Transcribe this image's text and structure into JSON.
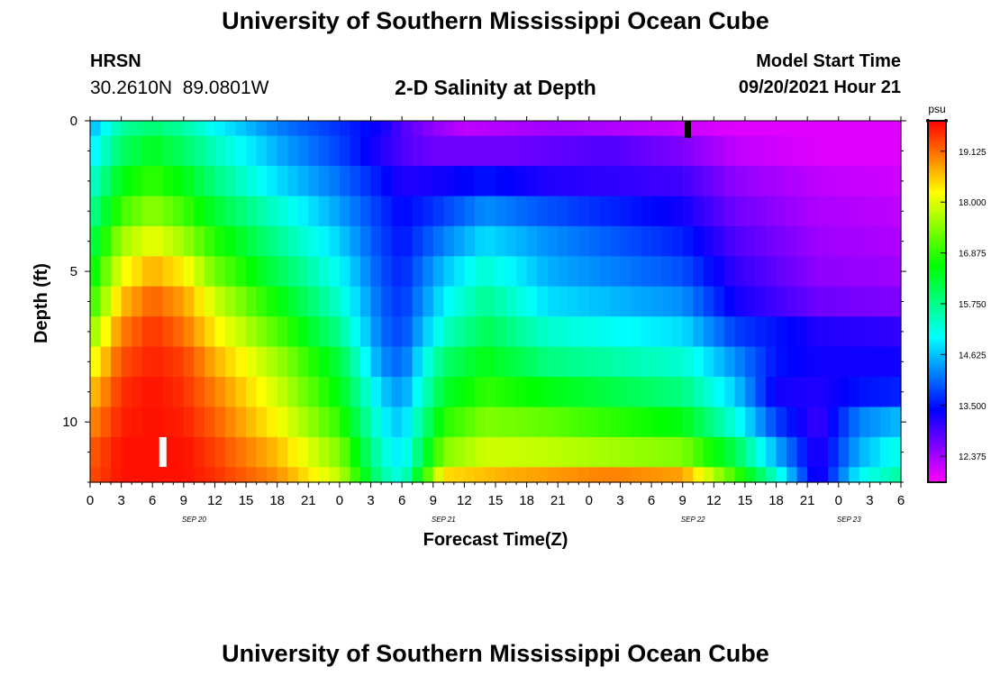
{
  "header": {
    "title": "University of Southern Mississippi Ocean Cube",
    "station": "HRSN",
    "coords": "30.2610N  89.0801W",
    "subtitle": "2-D Salinity at Depth",
    "model_label": "Model Start Time",
    "model_time": "09/20/2021 Hour 21"
  },
  "footer": {
    "title": "University of Southern Mississippi Ocean Cube"
  },
  "chart_data": {
    "type": "heatmap",
    "title": "2-D Salinity at Depth",
    "xlabel": "Forecast Time(Z)",
    "ylabel": "Depth (ft)",
    "colorbar_unit": "psu",
    "colorbar_ticks": [
      "12.375",
      "13.500",
      "14.625",
      "15.750",
      "16.875",
      "18.000",
      "19.125"
    ],
    "colorbar_range": [
      11.8,
      19.8
    ],
    "x_ticks": [
      "0",
      "3",
      "6",
      "9",
      "12",
      "15",
      "18",
      "21",
      "0",
      "3",
      "6",
      "9",
      "12",
      "15",
      "18",
      "21",
      "0",
      "3",
      "6",
      "9",
      "12",
      "15",
      "18",
      "21",
      "0",
      "3",
      "6"
    ],
    "date_labels": [
      {
        "label": "SEP 20",
        "hour": 10
      },
      {
        "label": "SEP 21",
        "hour": 34
      },
      {
        "label": "SEP 22",
        "hour": 58
      },
      {
        "label": "SEP 23",
        "hour": 73
      }
    ],
    "xlim": [
      0,
      78
    ],
    "y_ticks": [
      0,
      5,
      10
    ],
    "ylim": [
      0,
      12
    ],
    "model_start_marker_hour": 57.5,
    "wake_marker_hour": 7,
    "row_depths_ft": [
      0,
      1,
      2,
      3,
      4,
      5,
      6,
      7,
      8,
      9,
      10,
      11,
      12
    ],
    "row_keyframes": [
      [
        [
          0,
          14.5
        ],
        [
          3,
          15.6
        ],
        [
          6,
          15.9
        ],
        [
          9,
          15.6
        ],
        [
          12,
          15.0
        ],
        [
          18,
          14.2
        ],
        [
          24,
          13.7
        ],
        [
          28,
          13.3
        ],
        [
          30,
          12.9
        ],
        [
          33,
          12.5
        ],
        [
          36,
          12.2
        ],
        [
          45,
          12.4
        ],
        [
          55,
          12.2
        ],
        [
          58,
          12.1
        ],
        [
          62,
          12.0
        ],
        [
          78,
          12.0
        ]
      ],
      [
        [
          0,
          14.8
        ],
        [
          3,
          16.0
        ],
        [
          6,
          16.4
        ],
        [
          9,
          16.0
        ],
        [
          12,
          15.4
        ],
        [
          18,
          14.5
        ],
        [
          24,
          13.8
        ],
        [
          28,
          13.2
        ],
        [
          30,
          12.9
        ],
        [
          33,
          12.7
        ],
        [
          40,
          12.7
        ],
        [
          50,
          12.9
        ],
        [
          57,
          12.6
        ],
        [
          62,
          12.2
        ],
        [
          70,
          12.0
        ],
        [
          78,
          12.0
        ]
      ],
      [
        [
          0,
          15.2
        ],
        [
          3,
          16.5
        ],
        [
          6,
          16.9
        ],
        [
          9,
          16.5
        ],
        [
          12,
          15.8
        ],
        [
          18,
          14.8
        ],
        [
          24,
          14.1
        ],
        [
          28,
          13.5
        ],
        [
          30,
          13.2
        ],
        [
          34,
          13.3
        ],
        [
          38,
          13.5
        ],
        [
          44,
          13.2
        ],
        [
          57,
          13.0
        ],
        [
          62,
          12.5
        ],
        [
          70,
          12.2
        ],
        [
          78,
          12.1
        ]
      ],
      [
        [
          0,
          15.6
        ],
        [
          3,
          17.0
        ],
        [
          6,
          17.5
        ],
        [
          9,
          17.0
        ],
        [
          12,
          16.3
        ],
        [
          18,
          15.3
        ],
        [
          24,
          14.4
        ],
        [
          28,
          13.7
        ],
        [
          30,
          13.4
        ],
        [
          34,
          13.8
        ],
        [
          38,
          14.3
        ],
        [
          44,
          13.9
        ],
        [
          57,
          13.3
        ],
        [
          62,
          12.7
        ],
        [
          70,
          12.3
        ],
        [
          78,
          12.2
        ]
      ],
      [
        [
          0,
          16.0
        ],
        [
          3,
          17.6
        ],
        [
          6,
          18.1
        ],
        [
          9,
          17.6
        ],
        [
          12,
          16.8
        ],
        [
          18,
          15.7
        ],
        [
          24,
          14.7
        ],
        [
          28,
          13.8
        ],
        [
          30,
          13.5
        ],
        [
          34,
          14.2
        ],
        [
          38,
          14.8
        ],
        [
          44,
          14.3
        ],
        [
          57,
          13.6
        ],
        [
          62,
          12.9
        ],
        [
          70,
          12.4
        ],
        [
          78,
          12.3
        ]
      ],
      [
        [
          0,
          16.4
        ],
        [
          3,
          18.1
        ],
        [
          6,
          18.7
        ],
        [
          9,
          18.3
        ],
        [
          12,
          17.3
        ],
        [
          18,
          16.1
        ],
        [
          24,
          15.0
        ],
        [
          28,
          13.9
        ],
        [
          30,
          13.6
        ],
        [
          34,
          14.6
        ],
        [
          38,
          15.3
        ],
        [
          44,
          14.5
        ],
        [
          57,
          13.9
        ],
        [
          62,
          13.1
        ],
        [
          70,
          12.5
        ],
        [
          78,
          12.4
        ]
      ],
      [
        [
          0,
          16.8
        ],
        [
          3,
          18.6
        ],
        [
          6,
          19.2
        ],
        [
          9,
          18.8
        ],
        [
          12,
          17.9
        ],
        [
          18,
          16.6
        ],
        [
          24,
          15.3
        ],
        [
          28,
          14.0
        ],
        [
          30,
          13.7
        ],
        [
          34,
          14.9
        ],
        [
          38,
          15.7
        ],
        [
          44,
          14.8
        ],
        [
          57,
          14.3
        ],
        [
          62,
          13.3
        ],
        [
          70,
          12.7
        ],
        [
          78,
          12.6
        ]
      ],
      [
        [
          0,
          17.4
        ],
        [
          3,
          19.0
        ],
        [
          6,
          19.5
        ],
        [
          9,
          19.1
        ],
        [
          12,
          18.3
        ],
        [
          18,
          17.1
        ],
        [
          24,
          15.7
        ],
        [
          28,
          14.1
        ],
        [
          30,
          13.8
        ],
        [
          34,
          15.3
        ],
        [
          38,
          16.1
        ],
        [
          44,
          15.3
        ],
        [
          57,
          14.8
        ],
        [
          62,
          13.8
        ],
        [
          70,
          13.2
        ],
        [
          78,
          13.1
        ]
      ],
      [
        [
          0,
          18.0
        ],
        [
          3,
          19.3
        ],
        [
          6,
          19.6
        ],
        [
          9,
          19.4
        ],
        [
          12,
          18.7
        ],
        [
          18,
          17.6
        ],
        [
          24,
          16.2
        ],
        [
          28,
          14.3
        ],
        [
          30,
          14.0
        ],
        [
          34,
          15.9
        ],
        [
          38,
          16.5
        ],
        [
          44,
          15.8
        ],
        [
          57,
          15.3
        ],
        [
          62,
          14.3
        ],
        [
          66,
          13.5
        ],
        [
          70,
          13.3
        ],
        [
          78,
          13.3
        ]
      ],
      [
        [
          0,
          18.5
        ],
        [
          3,
          19.5
        ],
        [
          6,
          19.7
        ],
        [
          9,
          19.5
        ],
        [
          12,
          19.0
        ],
        [
          18,
          17.9
        ],
        [
          24,
          16.5
        ],
        [
          28,
          14.7
        ],
        [
          30,
          14.3
        ],
        [
          34,
          16.3
        ],
        [
          38,
          16.9
        ],
        [
          44,
          16.5
        ],
        [
          57,
          15.8
        ],
        [
          62,
          14.7
        ],
        [
          66,
          13.3
        ],
        [
          70,
          13.2
        ],
        [
          74,
          13.5
        ],
        [
          78,
          13.6
        ]
      ],
      [
        [
          0,
          18.9
        ],
        [
          3,
          19.6
        ],
        [
          6,
          19.7
        ],
        [
          9,
          19.6
        ],
        [
          12,
          19.2
        ],
        [
          18,
          18.2
        ],
        [
          24,
          16.9
        ],
        [
          28,
          15.0
        ],
        [
          30,
          14.6
        ],
        [
          34,
          16.8
        ],
        [
          38,
          17.4
        ],
        [
          44,
          17.2
        ],
        [
          57,
          16.5
        ],
        [
          62,
          15.2
        ],
        [
          66,
          13.8
        ],
        [
          70,
          13.0
        ],
        [
          74,
          14.2
        ],
        [
          78,
          14.6
        ]
      ],
      [
        [
          0,
          19.2
        ],
        [
          3,
          19.7
        ],
        [
          6,
          19.7
        ],
        [
          9,
          19.7
        ],
        [
          12,
          19.4
        ],
        [
          18,
          18.6
        ],
        [
          24,
          17.4
        ],
        [
          28,
          15.3
        ],
        [
          30,
          14.8
        ],
        [
          34,
          17.4
        ],
        [
          38,
          17.9
        ],
        [
          44,
          17.8
        ],
        [
          57,
          17.4
        ],
        [
          62,
          16.1
        ],
        [
          66,
          14.5
        ],
        [
          70,
          13.1
        ],
        [
          74,
          14.5
        ],
        [
          78,
          15.2
        ]
      ],
      [
        [
          0,
          19.3
        ],
        [
          3,
          19.7
        ],
        [
          6,
          19.7
        ],
        [
          9,
          19.7
        ],
        [
          12,
          19.5
        ],
        [
          18,
          18.9
        ],
        [
          24,
          17.8
        ],
        [
          28,
          15.6
        ],
        [
          30,
          15.1
        ],
        [
          34,
          18.4
        ],
        [
          40,
          18.7
        ],
        [
          50,
          19.0
        ],
        [
          57,
          18.8
        ],
        [
          62,
          17.0
        ],
        [
          66,
          15.3
        ],
        [
          70,
          13.1
        ],
        [
          74,
          15.0
        ],
        [
          78,
          15.6
        ]
      ]
    ]
  }
}
